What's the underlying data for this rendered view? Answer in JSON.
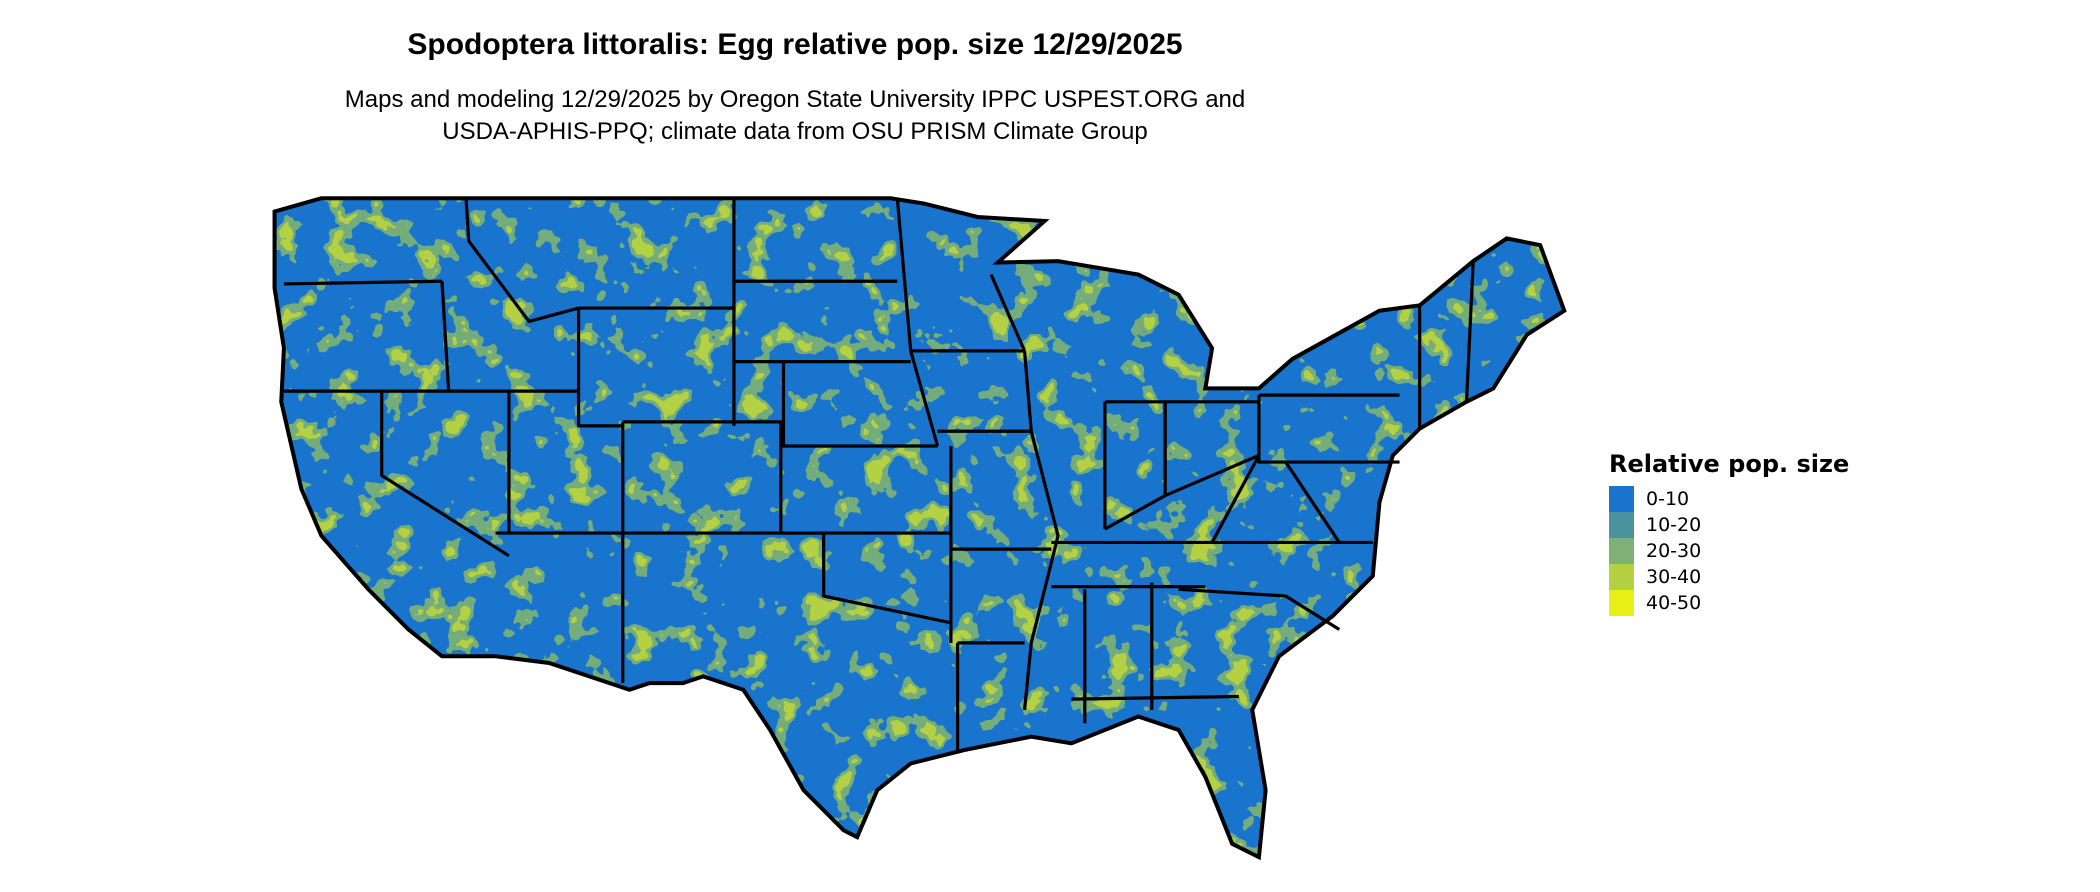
{
  "title": "Spodoptera littoralis: Egg relative pop. size 12/29/2025",
  "subtitle_line1": "Maps and modeling 12/29/2025 by Oregon State University IPPC USPEST.ORG and",
  "subtitle_line2": "USDA-APHIS-PPQ; climate data from OSU PRISM Climate Group",
  "map": {
    "region": "Contiguous United States",
    "base_color": "#1874cd",
    "border_color": "#000000"
  },
  "legend": {
    "title": "Relative pop. size",
    "items": [
      {
        "label": "0-10",
        "color": "#1874cd"
      },
      {
        "label": "10-20",
        "color": "#4a929e"
      },
      {
        "label": "20-30",
        "color": "#7fb075"
      },
      {
        "label": "30-40",
        "color": "#b3d143"
      },
      {
        "label": "40-50",
        "color": "#e8f015"
      }
    ]
  }
}
